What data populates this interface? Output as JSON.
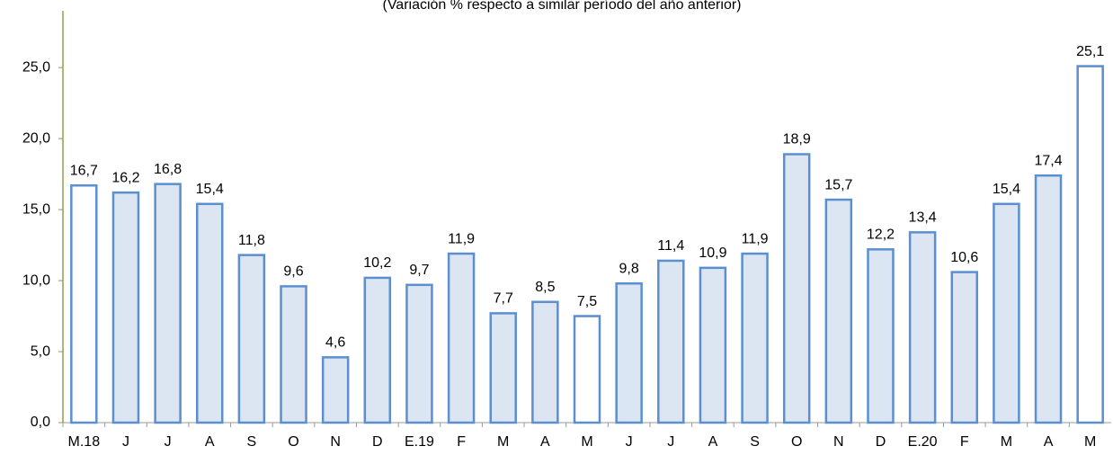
{
  "chart_data": {
    "type": "bar",
    "subtitle": "(Variación % respecto a similar período del año anterior)",
    "categories": [
      "M.18",
      "J",
      "J",
      "A",
      "S",
      "O",
      "N",
      "D",
      "E.19",
      "F",
      "M",
      "A",
      "M",
      "J",
      "J",
      "A",
      "S",
      "O",
      "N",
      "D",
      "E.20",
      "F",
      "M",
      "A",
      "M"
    ],
    "values": [
      16.7,
      16.2,
      16.8,
      15.4,
      11.8,
      9.6,
      4.6,
      10.2,
      9.7,
      11.9,
      7.7,
      8.5,
      7.5,
      9.8,
      11.4,
      10.9,
      11.9,
      18.9,
      15.7,
      12.2,
      13.4,
      10.6,
      15.4,
      17.4,
      25.1
    ],
    "value_labels": [
      "16,7",
      "16,2",
      "16,8",
      "15,4",
      "11,8",
      "9,6",
      "4,6",
      "10,2",
      "9,7",
      "11,9",
      "7,7",
      "8,5",
      "7,5",
      "9,8",
      "11,4",
      "10,9",
      "11,9",
      "18,9",
      "15,7",
      "12,2",
      "13,4",
      "10,6",
      "15,4",
      "17,4",
      "25,1"
    ],
    "color": "#5b8fd0",
    "fills": [
      "#ffffff",
      "#dce6f2",
      "#dce6f2",
      "#dce6f2",
      "#dce6f2",
      "#dce6f2",
      "#dce6f2",
      "#dce6f2",
      "#dce6f2",
      "#dce6f2",
      "#dce6f2",
      "#dce6f2",
      "#ffffff",
      "#dce6f2",
      "#dce6f2",
      "#dce6f2",
      "#dce6f2",
      "#dce6f2",
      "#dce6f2",
      "#dce6f2",
      "#dce6f2",
      "#dce6f2",
      "#dce6f2",
      "#dce6f2",
      "#ffffff"
    ],
    "ylim": [
      0,
      29
    ],
    "yticks": [
      {
        "value": 0,
        "label": "0,0"
      },
      {
        "value": 5,
        "label": "5,0"
      },
      {
        "value": 10,
        "label": "10,0"
      },
      {
        "value": 15,
        "label": "15,0"
      },
      {
        "value": 20,
        "label": "20,0"
      },
      {
        "value": 25,
        "label": "25,0"
      }
    ],
    "grid": false
  }
}
